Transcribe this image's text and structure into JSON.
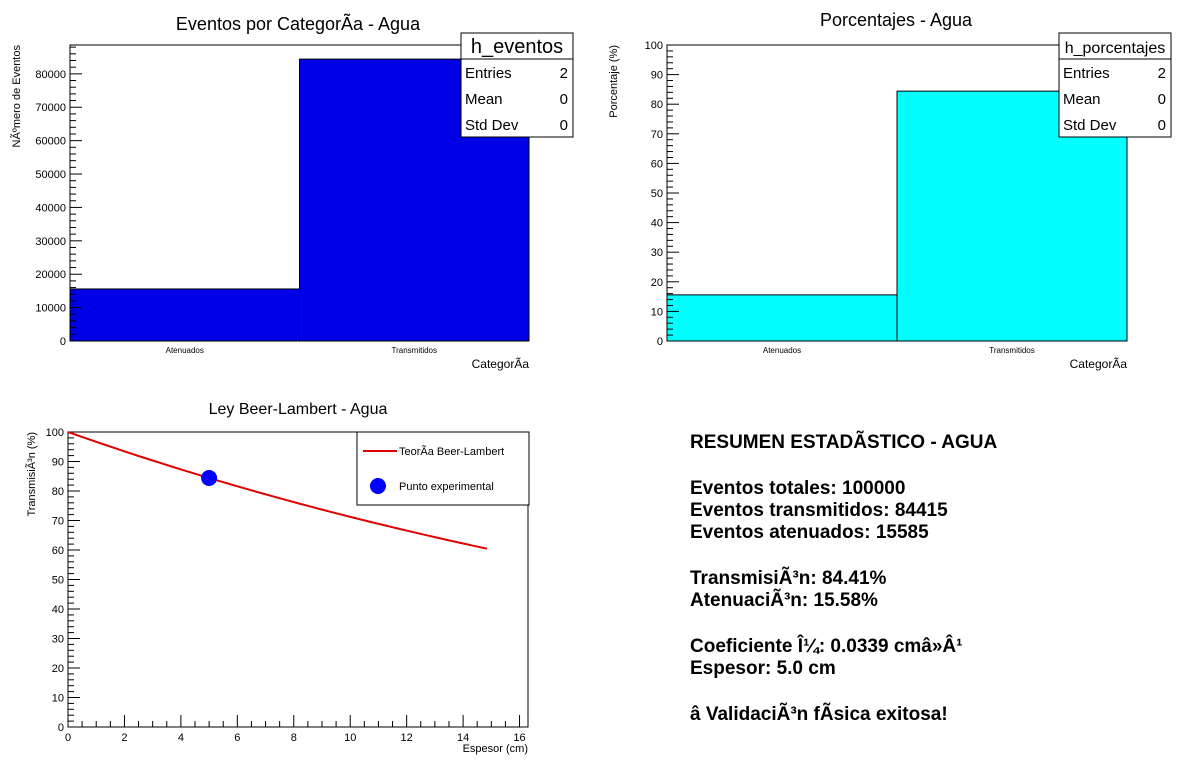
{
  "chart_data": [
    {
      "type": "bar",
      "title": "Eventos por CategorÃ­a - Agua",
      "xlabel": "CategorÃ­a",
      "ylabel": "NÃºmero de Eventos",
      "categories": [
        "Atenuados",
        "Transmitidos"
      ],
      "values": [
        15585,
        84415
      ],
      "ylim": [
        0,
        88640
      ],
      "yticks": [
        0,
        10000,
        20000,
        30000,
        40000,
        50000,
        60000,
        70000,
        80000
      ],
      "color": "#0000e6",
      "stats_box": {
        "name": "h_eventos",
        "rows": [
          [
            "Entries",
            "2"
          ],
          [
            "Mean",
            "0"
          ],
          [
            "Std Dev",
            "0"
          ]
        ]
      }
    },
    {
      "type": "bar",
      "title": "Porcentajes - Agua",
      "xlabel": "CategorÃ­a",
      "ylabel": "Porcentaje (%)",
      "categories": [
        "Atenuados",
        "Transmitidos"
      ],
      "values": [
        15.585,
        84.415
      ],
      "ylim": [
        0,
        100
      ],
      "yticks": [
        0,
        10,
        20,
        30,
        40,
        50,
        60,
        70,
        80,
        90,
        100
      ],
      "color": "#00ffff",
      "stats_box": {
        "name": "h_porcentajes",
        "rows": [
          [
            "Entries",
            "2"
          ],
          [
            "Mean",
            "0"
          ],
          [
            "Std Dev",
            "0"
          ]
        ]
      }
    },
    {
      "type": "line",
      "title": "Ley Beer-Lambert - Agua",
      "xlabel": "Espesor (cm)",
      "ylabel": "TransmisiÃ³n (%)",
      "xlim": [
        0,
        16.3
      ],
      "ylim": [
        0,
        100
      ],
      "xticks": [
        0,
        2,
        4,
        6,
        8,
        10,
        12,
        14,
        16
      ],
      "yticks": [
        0,
        10,
        20,
        30,
        40,
        50,
        60,
        70,
        80,
        90,
        100
      ],
      "series": [
        {
          "name": "TeorÃ­a Beer-Lambert",
          "type": "line",
          "color": "#e00000",
          "mu": 0.0339,
          "x_range": [
            0,
            14.85
          ]
        },
        {
          "name": "Punto experimental",
          "type": "scatter",
          "color": "#0000ff",
          "x": [
            5.0
          ],
          "y": [
            84.415
          ]
        }
      ],
      "legend": "top-right"
    }
  ],
  "summary": {
    "title": "RESUMEN ESTADÃSTICO - AGUA",
    "total": "Eventos totales: 100000",
    "transmitted": "Eventos transmitidos: 84415",
    "attenuated": "Eventos atenuados: 15585",
    "transmission": "TransmisiÃ³n: 84.41%",
    "attenuation": "AtenuaciÃ³n: 15.58%",
    "coefficient": "Coeficiente Î¼: 0.0339 cmâ»Â¹",
    "thickness": "Espesor: 5.0 cm",
    "validation": "â ValidaciÃ³n fÃ­sica exitosa!"
  }
}
